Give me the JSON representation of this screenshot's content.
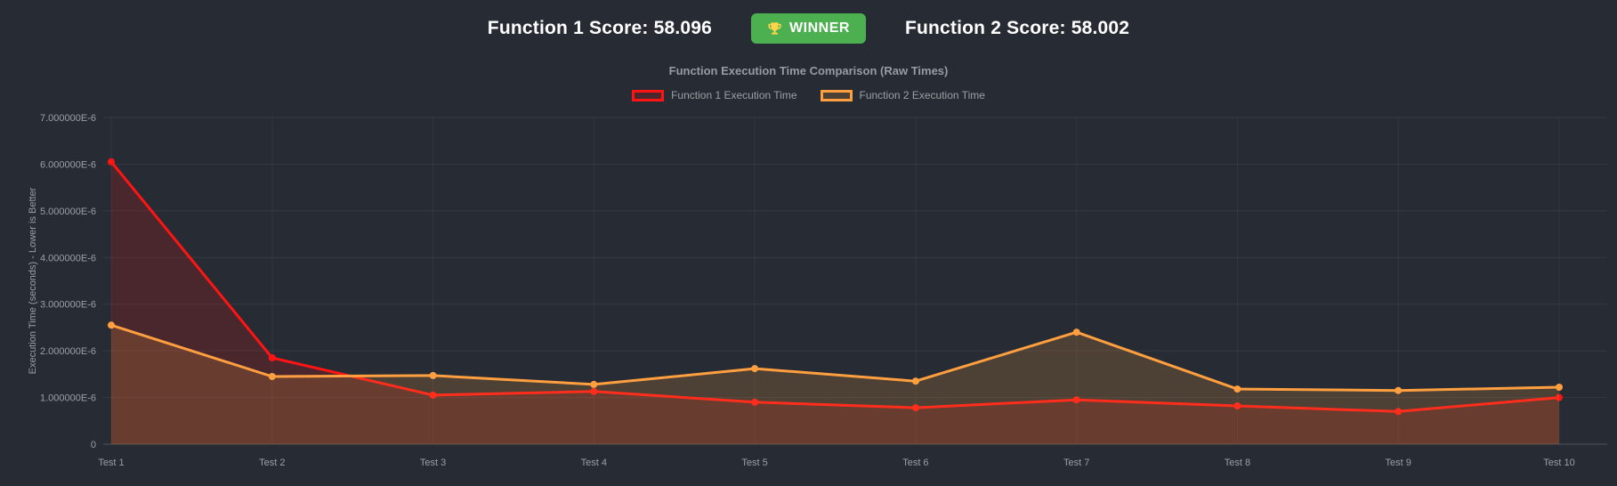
{
  "header": {
    "function1": {
      "label": "Function 1 Score:",
      "value": "58.096"
    },
    "function2": {
      "label": "Function 2 Score:",
      "value": "58.002"
    },
    "winner_label": "WINNER",
    "winner_badge_color": "#4caf50",
    "trophy_color": "#ffd54a"
  },
  "chart_data": {
    "type": "line",
    "title": "Function Execution Time Comparison (Raw Times)",
    "categories": [
      "Test 1",
      "Test 2",
      "Test 3",
      "Test 4",
      "Test 5",
      "Test 6",
      "Test 7",
      "Test 8",
      "Test 9",
      "Test 10"
    ],
    "series": [
      {
        "name": "Function 1 Execution Time",
        "color": "#ff1414",
        "fill": "rgba(255,20,20,0.16)",
        "values": [
          6.05e-06,
          1.85e-06,
          1.05e-06,
          1.13e-06,
          9e-07,
          7.8e-07,
          9.5e-07,
          8.2e-07,
          7e-07,
          1e-06
        ]
      },
      {
        "name": "Function 2 Execution Time",
        "color": "#ff9f40",
        "fill": "rgba(255,159,64,0.18)",
        "values": [
          2.55e-06,
          1.45e-06,
          1.47e-06,
          1.28e-06,
          1.62e-06,
          1.35e-06,
          2.4e-06,
          1.18e-06,
          1.15e-06,
          1.22e-06
        ]
      }
    ],
    "xlabel": "",
    "ylabel": "Execution Time (seconds) - Lower is Better",
    "ylim": [
      0,
      7e-06
    ],
    "ytick_values": [
      0,
      1e-06,
      2e-06,
      3e-06,
      4e-06,
      5e-06,
      6e-06,
      7e-06
    ],
    "ytick_labels": [
      "0",
      "1.000000E-6",
      "2.000000E-6",
      "3.000000E-6",
      "4.000000E-6",
      "5.000000E-6",
      "6.000000E-6",
      "7.000000E-6"
    ],
    "grid": true,
    "legend_position": "top",
    "tick_color": "#9aa0a6",
    "grid_color": "rgba(255,255,255,0.07)",
    "axis_line_color": "rgba(255,255,255,0.18)"
  }
}
